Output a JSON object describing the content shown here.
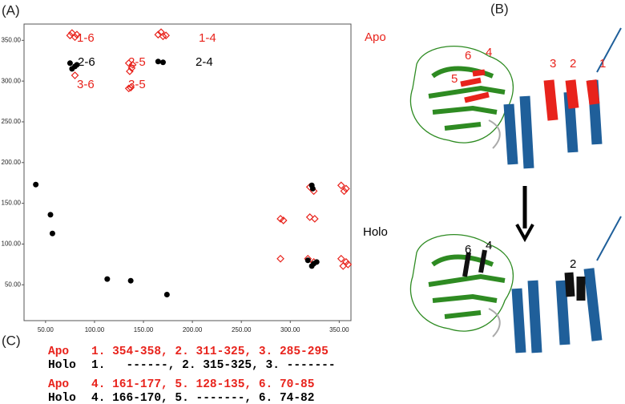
{
  "panel_labels": [
    "(A)",
    "(B)",
    "(C)"
  ],
  "chart_data": {
    "type": "scatter",
    "xlim": [
      28,
      362
    ],
    "ylim": [
      6,
      370
    ],
    "xticks": [
      {
        "value": 50,
        "label": "50.00"
      },
      {
        "value": 100,
        "label": "100.00"
      },
      {
        "value": 150,
        "label": "150.00"
      },
      {
        "value": 200,
        "label": "200.00"
      },
      {
        "value": 250,
        "label": "250.00"
      },
      {
        "value": 300,
        "label": "300.00"
      },
      {
        "value": 350,
        "label": "350.00"
      }
    ],
    "yticks": [
      {
        "value": 50,
        "label": "50.00"
      },
      {
        "value": 100,
        "label": "100.00"
      },
      {
        "value": 150,
        "label": "150.00"
      },
      {
        "value": 200,
        "label": "200.00"
      },
      {
        "value": 250,
        "label": "250.00"
      },
      {
        "value": 300,
        "label": "300.00"
      },
      {
        "value": 350,
        "label": "350.00"
      }
    ],
    "series": [
      {
        "color": "#e8231c",
        "marker": "open-diamond",
        "x": [
          75,
          80,
          77,
          82,
          165,
          170,
          168,
          173,
          135,
          138,
          136,
          139,
          137,
          135,
          80,
          320,
          324,
          352,
          357,
          355,
          290,
          293,
          320,
          325,
          290,
          318,
          324,
          352,
          357,
          354,
          359
        ],
        "y": [
          356,
          354,
          359,
          357,
          357,
          355,
          360,
          356,
          322,
          316,
          312,
          320,
          292,
          291,
          307,
          170,
          165,
          172,
          168,
          165,
          131,
          129,
          133,
          131,
          82,
          82,
          78,
          82,
          78,
          73,
          75
        ]
      },
      {
        "color": "#000000",
        "marker": "dot",
        "x": [
          75,
          80,
          77,
          82,
          165,
          170,
          322,
          323,
          318,
          324,
          322,
          327,
          40,
          55,
          57,
          113,
          137,
          174
        ],
        "y": [
          322,
          318,
          315,
          320,
          324,
          323,
          172,
          168,
          80,
          76,
          73,
          78,
          173,
          136,
          113,
          57,
          55,
          38
        ]
      }
    ],
    "annotations": [
      {
        "text": "1-6",
        "color": "#e8231c"
      },
      {
        "text": "1-4",
        "color": "#e8231c"
      },
      {
        "text": "2-6",
        "color": "#000000"
      },
      {
        "text": "2-5",
        "color": "#e8231c"
      },
      {
        "text": "2-4",
        "color": "#000000"
      },
      {
        "text": "3-6",
        "color": "#e8231c"
      },
      {
        "text": "3-5",
        "color": "#e8231c"
      }
    ]
  },
  "state_labels": {
    "apo": "Apo",
    "holo": "Holo"
  },
  "structure_labels": {
    "apo": [
      "6",
      "5",
      "4",
      "3",
      "2",
      "1"
    ],
    "holo": [
      "6",
      "4",
      "2"
    ]
  },
  "segments": {
    "apo_label": "Apo",
    "holo_label": "Holo",
    "apo_lines": [
      "1. 354-358, 2. 311-325, 3. 285-295",
      "4. 161-177, 5. 128-135, 6. 70-85"
    ],
    "holo_lines": [
      "1.   ------, 2. 315-325, 3. -------",
      "4. 166-170, 5. -------, 6. 74-82"
    ]
  }
}
